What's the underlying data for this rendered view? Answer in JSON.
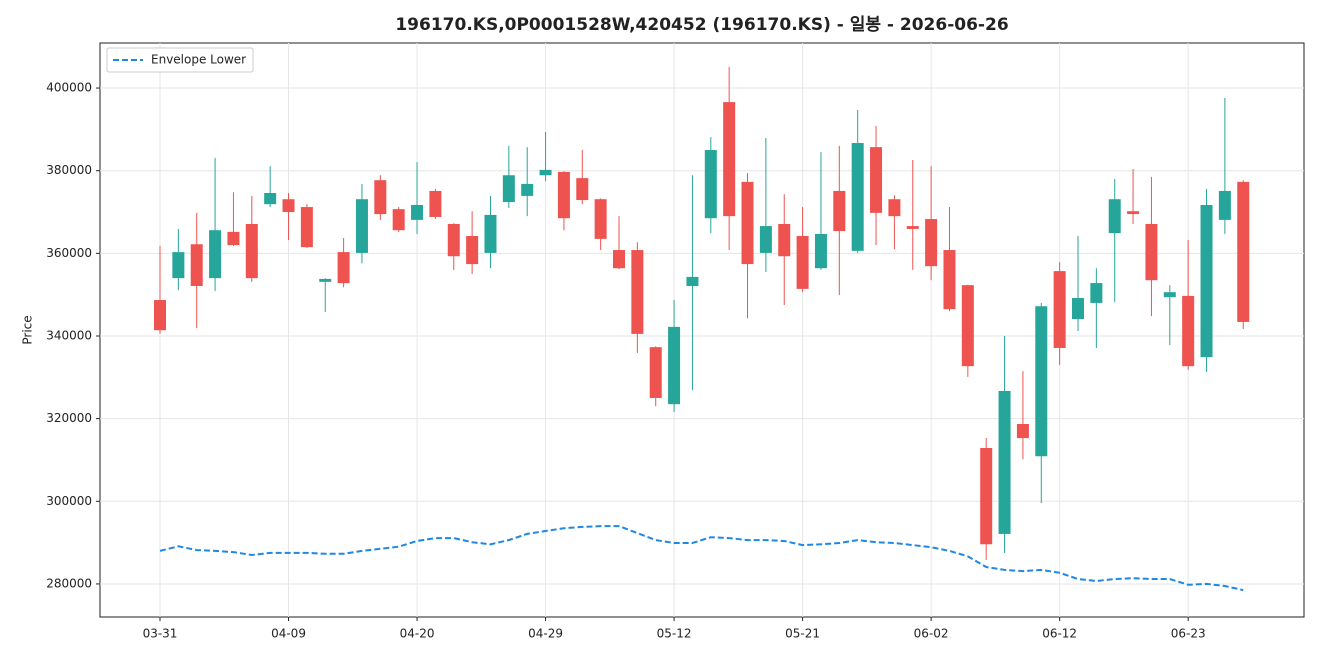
{
  "chart_data": {
    "type": "candlestick",
    "title": "196170.KS,0P0001528W,420452 (196170.KS) - 일봉 - 2026-06-26",
    "y_label": "Price",
    "categories": [
      "03-31",
      null,
      null,
      null,
      null,
      null,
      null,
      "04-09",
      null,
      null,
      null,
      null,
      null,
      null,
      "04-20",
      null,
      null,
      null,
      null,
      null,
      null,
      "04-29",
      null,
      null,
      null,
      null,
      null,
      null,
      "05-12",
      null,
      null,
      null,
      null,
      null,
      null,
      "05-21",
      null,
      null,
      null,
      null,
      null,
      null,
      "06-02",
      null,
      null,
      null,
      null,
      null,
      null,
      "06-12",
      null,
      null,
      null,
      null,
      null,
      null,
      "06-23",
      null,
      null,
      null
    ],
    "open": [
      348700,
      354000,
      362200,
      354000,
      365200,
      367100,
      371900,
      373100,
      371200,
      353100,
      360300,
      360100,
      377700,
      370700,
      368100,
      375100,
      367100,
      364200,
      360100,
      372400,
      373900,
      378900,
      379700,
      378200,
      373100,
      360800,
      360800,
      337300,
      323500,
      352100,
      368500,
      396600,
      377300,
      360100,
      367100,
      364200,
      356400,
      375100,
      360600,
      385700,
      373100,
      366600,
      368300,
      360800,
      352300,
      312900,
      292100,
      318700,
      310900,
      355700,
      344100,
      348000,
      364900,
      370200,
      367100,
      349400,
      349700,
      334900,
      368100,
      377300
    ],
    "high": [
      361800,
      365900,
      369800,
      383100,
      374800,
      373900,
      381100,
      374600,
      371900,
      354000,
      363700,
      376800,
      378900,
      371200,
      382100,
      375600,
      367300,
      370200,
      373900,
      386000,
      385700,
      389400,
      379900,
      385000,
      373300,
      369000,
      362700,
      337500,
      348700,
      378900,
      388100,
      405100,
      379400,
      387900,
      374300,
      371200,
      384500,
      386000,
      394700,
      390800,
      374100,
      382600,
      381100,
      371200,
      352400,
      315300,
      340000,
      331500,
      348000,
      357900,
      364200,
      356400,
      378000,
      380400,
      378500,
      352300,
      363200,
      375600,
      397600,
      377700
    ],
    "low": [
      340500,
      351100,
      341900,
      350900,
      361800,
      353100,
      371200,
      363200,
      361300,
      345800,
      351800,
      357600,
      368100,
      365200,
      364700,
      368300,
      356000,
      355000,
      356400,
      371000,
      369000,
      377500,
      365600,
      371900,
      360800,
      356200,
      335900,
      323000,
      321600,
      326900,
      364900,
      360800,
      344300,
      355500,
      347500,
      350600,
      356000,
      349900,
      360100,
      362000,
      361000,
      356000,
      353500,
      346000,
      330100,
      285800,
      287500,
      310200,
      299600,
      333000,
      341200,
      337100,
      348200,
      367100,
      344800,
      337800,
      331800,
      331300,
      364700,
      341700
    ],
    "close": [
      341400,
      360300,
      352100,
      365600,
      362000,
      354000,
      374600,
      370000,
      361500,
      353800,
      352800,
      373100,
      369500,
      365600,
      371700,
      368800,
      359300,
      357400,
      369300,
      378900,
      376800,
      380200,
      368500,
      372900,
      363500,
      356400,
      340500,
      325000,
      342200,
      354300,
      385000,
      369000,
      357400,
      366600,
      359300,
      351400,
      364700,
      365400,
      386700,
      369800,
      369000,
      365900,
      356900,
      346500,
      332700,
      289600,
      326700,
      315300,
      347200,
      337100,
      349200,
      352800,
      373100,
      369500,
      353500,
      350600,
      332700,
      371700,
      375100,
      343400
    ],
    "up_color": "#26a69a",
    "down_color": "#ef5350",
    "series": [
      {
        "name": "Envelope Lower",
        "color": "#1e88e5",
        "dashed": true,
        "values": [
          288000,
          289100,
          288200,
          288000,
          287700,
          287000,
          287500,
          287500,
          287500,
          287300,
          287300,
          288000,
          288500,
          289000,
          290400,
          291100,
          291100,
          290100,
          289600,
          290600,
          292100,
          292800,
          293500,
          293800,
          294000,
          294000,
          292300,
          290600,
          289900,
          289900,
          291300,
          291100,
          290600,
          290600,
          290400,
          289400,
          289600,
          289900,
          290600,
          290100,
          289900,
          289400,
          288900,
          288000,
          286700,
          284100,
          283400,
          283100,
          283400,
          282700,
          281200,
          280700,
          281200,
          281400,
          281200,
          281200,
          279800,
          280000,
          279500,
          278500
        ]
      }
    ],
    "ylim": [
      272000,
      410900
    ],
    "yticks": [
      280000,
      300000,
      320000,
      340000,
      360000,
      380000,
      400000
    ],
    "grid": true,
    "legend": "upper left"
  }
}
